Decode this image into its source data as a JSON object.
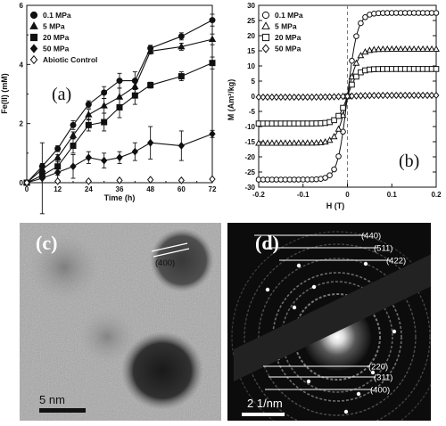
{
  "chart_data": [
    {
      "panel": "a",
      "type": "line",
      "xlabel": "Time (h)",
      "ylabel": "Fe(II) (mM)",
      "xlim": [
        0,
        72
      ],
      "ylim": [
        0,
        6
      ],
      "xticks": [
        0,
        12,
        24,
        36,
        48,
        60,
        72
      ],
      "yticks": [
        0,
        2,
        4,
        6
      ],
      "legend": "top-left",
      "series": [
        {
          "name": "0.1 MPa",
          "marker": "circle-filled",
          "x": [
            0,
            6,
            12,
            18,
            24,
            30,
            36,
            42,
            48,
            60,
            72
          ],
          "y": [
            0,
            0.55,
            1.15,
            1.95,
            2.65,
            3.05,
            3.45,
            3.45,
            4.55,
            4.95,
            5.5
          ],
          "err": [
            0,
            0.1,
            0.1,
            0.15,
            0.12,
            0.2,
            0.25,
            0.3,
            0.1,
            0.12,
            0.2
          ]
        },
        {
          "name": "5 MPa",
          "marker": "triangle-filled",
          "x": [
            0,
            6,
            12,
            18,
            24,
            30,
            36,
            42,
            48,
            60,
            72
          ],
          "y": [
            0,
            0.45,
            0.85,
            1.6,
            2.3,
            2.6,
            2.9,
            3.25,
            4.45,
            4.6,
            4.85
          ],
          "err": [
            0,
            0.08,
            0.1,
            0.12,
            0.18,
            0.25,
            0.3,
            0.25,
            0.1,
            0.12,
            0.18
          ]
        },
        {
          "name": "20 MPa",
          "marker": "square-filled",
          "x": [
            0,
            6,
            12,
            18,
            24,
            30,
            36,
            42,
            48,
            60,
            72
          ],
          "y": [
            0,
            0.25,
            0.55,
            1.25,
            1.95,
            2.05,
            2.55,
            2.95,
            3.3,
            3.6,
            4.05
          ],
          "err": [
            0,
            0.1,
            0.3,
            0.25,
            0.2,
            0.3,
            0.35,
            0.3,
            0.1,
            0.15,
            0.2
          ]
        },
        {
          "name": "50 MPa",
          "marker": "diamond-filled",
          "x": [
            0,
            6,
            12,
            18,
            24,
            30,
            36,
            42,
            48,
            60,
            72
          ],
          "y": [
            0,
            0.15,
            0.35,
            0.55,
            0.85,
            0.75,
            0.85,
            1.05,
            1.35,
            1.25,
            1.65
          ],
          "err": [
            0,
            1.2,
            0.35,
            0.4,
            0.2,
            0.25,
            0.2,
            0.3,
            0.55,
            0.5,
            0.12
          ]
        },
        {
          "name": "Abiotic Control",
          "marker": "diamond-open",
          "x": [
            0,
            12,
            24,
            36,
            48,
            60,
            72
          ],
          "y": [
            0,
            0.05,
            0.05,
            0.08,
            0.1,
            0.08,
            0.12
          ],
          "err": [
            0,
            0,
            0,
            0,
            0,
            0,
            0
          ]
        }
      ]
    },
    {
      "panel": "b",
      "type": "scatter",
      "xlabel": "H (T)",
      "ylabel": "M (Am²/kg)",
      "xlim": [
        -0.2,
        0.2
      ],
      "ylim": [
        -30,
        30
      ],
      "xticks": [
        -0.2,
        -0.1,
        0.0,
        0.1,
        0.2
      ],
      "xticklabels": [
        "-0.2",
        "-0.1",
        "0",
        "0.1",
        "0.2"
      ],
      "yticks": [
        -30,
        -25,
        -20,
        -15,
        -10,
        -5,
        0,
        5,
        10,
        15,
        20,
        25,
        30
      ],
      "legend": "top-left",
      "series": [
        {
          "name": "0.1 MPa",
          "marker": "circle-open",
          "ms": 27.5,
          "h0": 0.022
        },
        {
          "name": "5 MPa",
          "marker": "triangle-open",
          "ms": 15.5,
          "h0": 0.023
        },
        {
          "name": "20 MPa",
          "marker": "square-open",
          "ms": 9.0,
          "h0": 0.022
        },
        {
          "name": "50 MPa",
          "marker": "diamond-open",
          "ms": 0.3,
          "h0": 0.05
        }
      ]
    }
  ],
  "panel_c": {
    "label": "(c)",
    "lattice_label": "(400)",
    "scale_bar_label": "5 nm"
  },
  "panel_d": {
    "label": "(d)",
    "ring_labels": [
      "(440)",
      "(511)",
      "(422)",
      "(220)",
      "(311)",
      "(400)"
    ],
    "scale_bar_label": "2 1/nm"
  },
  "panel_a_label": "(a)",
  "panel_b_label": "(b)"
}
